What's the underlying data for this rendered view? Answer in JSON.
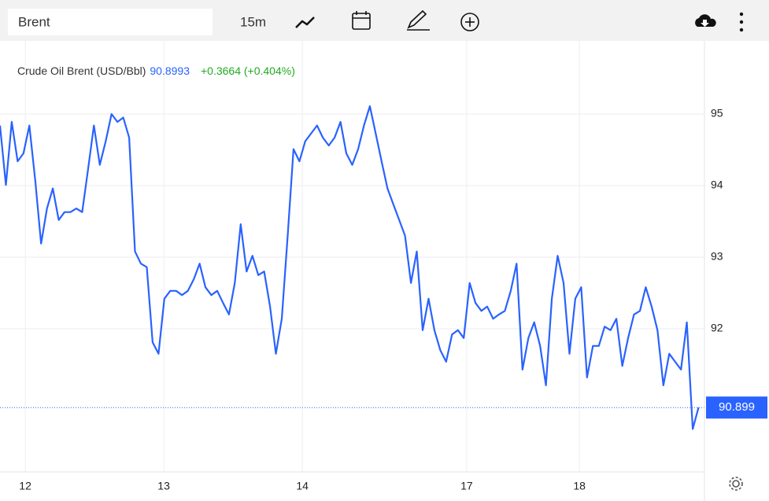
{
  "toolbar": {
    "symbol": "Brent",
    "interval": "15m"
  },
  "chart_data": {
    "type": "line",
    "series": [
      {
        "name": "Crude Oil Brent (USD/Bbl)",
        "color": "#2962ff",
        "values": [
          94.84,
          94.01,
          94.89,
          94.34,
          94.45,
          94.84,
          94.07,
          93.19,
          93.68,
          93.96,
          93.52,
          93.63,
          93.63,
          93.68,
          93.63,
          94.23,
          94.84,
          94.29,
          94.62,
          95.0,
          94.89,
          94.95,
          94.67,
          93.08,
          92.91,
          92.86,
          91.81,
          91.65,
          92.42,
          92.53,
          92.53,
          92.47,
          92.53,
          92.69,
          92.91,
          92.58,
          92.47,
          92.53,
          92.36,
          92.2,
          92.64,
          93.46,
          92.8,
          93.02,
          92.75,
          92.8,
          92.31,
          91.65,
          92.14,
          93.3,
          94.51,
          94.34,
          94.62,
          94.73,
          94.84,
          94.67,
          94.56,
          94.67,
          94.89,
          94.45,
          94.29,
          94.51,
          94.84,
          95.11,
          94.73,
          94.34,
          93.96,
          93.74,
          93.52,
          93.3,
          92.64,
          93.08,
          91.98,
          92.42,
          91.98,
          91.7,
          91.54,
          91.92,
          91.98,
          91.87,
          92.64,
          92.36,
          92.25,
          92.31,
          92.14,
          92.2,
          92.25,
          92.53,
          92.91,
          91.43,
          91.87,
          92.09,
          91.76,
          91.21,
          92.42,
          93.02,
          92.64,
          91.65,
          92.42,
          92.58,
          91.32,
          91.76,
          91.76,
          92.03,
          91.98,
          92.14,
          91.48,
          91.87,
          92.2,
          92.25,
          92.58,
          92.31,
          91.98,
          91.21,
          91.65,
          91.54,
          91.43,
          92.09,
          90.6,
          90.9
        ]
      }
    ],
    "last_value": 90.8993,
    "change": "+0.3664 (+0.404%)",
    "last_price": 90.899,
    "xlim": [
      0,
      120
    ],
    "xticks": [
      {
        "value": 4.3,
        "label": "12"
      },
      {
        "value": 27.9,
        "label": "13"
      },
      {
        "value": 51.5,
        "label": "14"
      },
      {
        "value": 79.5,
        "label": "17"
      },
      {
        "value": 98.7,
        "label": "18"
      }
    ],
    "ylim": [
      90,
      96
    ],
    "yticks": [
      92,
      93,
      94,
      95
    ],
    "grid": true
  }
}
